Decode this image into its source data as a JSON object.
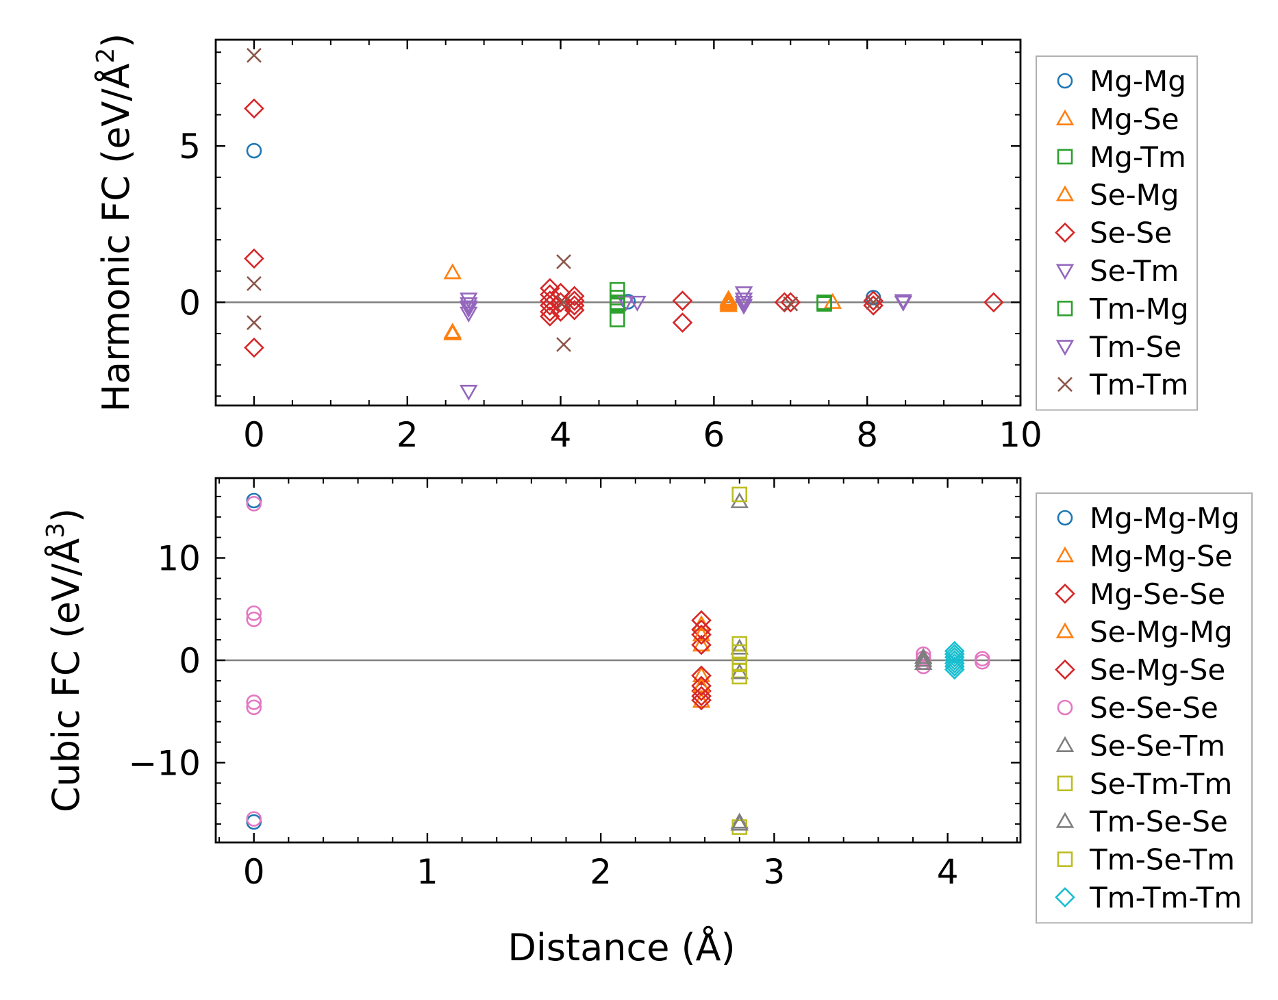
{
  "chart_data": [
    {
      "type": "scatter",
      "panel": "top",
      "ylabel": "Harmonic FC (eV/Å",
      "ylabel_sup": "2",
      "ylabel_end": ")",
      "xlim": [
        -0.5,
        10
      ],
      "ylim": [
        -3.3,
        8.4
      ],
      "xticks": [
        0,
        2,
        4,
        6,
        8,
        10
      ],
      "yticks": [
        0,
        5
      ],
      "zero_line": true,
      "legend_position": "right-outside",
      "series": [
        {
          "name": "Mg-Mg",
          "marker": "circle",
          "color": "#1f77b4",
          "x": [
            0,
            8.08,
            4.88
          ],
          "y": [
            4.85,
            0.15,
            0.02
          ]
        },
        {
          "name": "Mg-Se",
          "marker": "triangle-up",
          "color": "#ff7f0e",
          "x": [
            2.59,
            2.59,
            2.59,
            6.19,
            6.19,
            6.19,
            7.55
          ],
          "y": [
            0.95,
            -0.95,
            -1.0,
            0.1,
            -0.1,
            0.0,
            0.0
          ]
        },
        {
          "name": "Mg-Tm",
          "marker": "square",
          "color": "#2ca02c",
          "x": [
            4.74,
            4.74,
            4.74,
            4.74,
            7.44,
            7.44
          ],
          "y": [
            0.4,
            0.15,
            -0.05,
            -0.55,
            0.0,
            -0.05
          ]
        },
        {
          "name": "Se-Mg",
          "marker": "triangle-up",
          "color": "#ff7f0e",
          "x": [
            2.59,
            6.19,
            6.19
          ],
          "y": [
            -0.98,
            -0.05,
            0.05
          ]
        },
        {
          "name": "Se-Se",
          "marker": "diamond",
          "color": "#d62728",
          "x": [
            0,
            0,
            0,
            3.86,
            3.86,
            3.86,
            3.86,
            3.86,
            3.86,
            4.0,
            4.0,
            4.0,
            4.18,
            4.18,
            4.18,
            4.18,
            5.59,
            5.59,
            6.92,
            7.0,
            8.08,
            8.08,
            9.65
          ],
          "y": [
            6.2,
            1.4,
            -1.45,
            0.45,
            0.25,
            0.05,
            -0.1,
            -0.3,
            -0.45,
            0.3,
            0.0,
            -0.3,
            0.2,
            0.05,
            -0.1,
            -0.25,
            0.05,
            -0.65,
            0.0,
            0.0,
            0.05,
            -0.1,
            0.0
          ]
        },
        {
          "name": "Se-Tm",
          "marker": "triangle-down",
          "color": "#9467bd",
          "x": [
            2.8,
            2.8,
            2.8,
            2.8,
            4.85,
            5.0,
            6.39,
            6.39,
            6.39,
            8.47
          ],
          "y": [
            0.1,
            -0.05,
            -0.2,
            -0.35,
            0.0,
            0.0,
            0.3,
            0.1,
            -0.1,
            0.0
          ]
        },
        {
          "name": "Tm-Mg",
          "marker": "square",
          "color": "#2ca02c",
          "x": [
            4.74,
            4.74
          ],
          "y": [
            0.0,
            -0.1
          ]
        },
        {
          "name": "Tm-Se",
          "marker": "triangle-down",
          "color": "#9467bd",
          "x": [
            2.8,
            2.8,
            6.39,
            8.47
          ],
          "y": [
            -2.85,
            -0.15,
            0.0,
            0.05
          ]
        },
        {
          "name": "Tm-Tm",
          "marker": "x",
          "color": "#8c564b",
          "x": [
            0,
            0,
            0,
            4.04,
            4.04,
            4.04,
            7.0,
            8.08
          ],
          "y": [
            7.9,
            0.6,
            -0.65,
            1.3,
            0.0,
            -1.35,
            -0.05,
            0.0
          ]
        }
      ]
    },
    {
      "type": "scatter",
      "panel": "bottom",
      "ylabel": "Cubic FC (eV/Å",
      "ylabel_sup": "3",
      "ylabel_end": ")",
      "xlabel": "Distance (Å)",
      "xlim": [
        -0.22,
        4.42
      ],
      "ylim": [
        -17.8,
        17.8
      ],
      "xticks": [
        0,
        1,
        2,
        3,
        4
      ],
      "yticks": [
        -10,
        0,
        10
      ],
      "zero_line": true,
      "legend_position": "right-outside",
      "series": [
        {
          "name": "Mg-Mg-Mg",
          "marker": "circle",
          "color": "#1f77b4",
          "x": [
            0,
            0
          ],
          "y": [
            15.6,
            -15.8
          ]
        },
        {
          "name": "Mg-Mg-Se",
          "marker": "triangle-up",
          "color": "#ff7f0e",
          "x": [
            2.58,
            2.58,
            2.58,
            2.58
          ],
          "y": [
            3.5,
            1.5,
            -1.5,
            -4.0
          ]
        },
        {
          "name": "Mg-Se-Se",
          "marker": "diamond",
          "color": "#d62728",
          "x": [
            2.58,
            2.58,
            2.58,
            2.58,
            2.58,
            2.58
          ],
          "y": [
            3.9,
            3.0,
            1.5,
            -1.5,
            -3.0,
            -3.9
          ]
        },
        {
          "name": "Se-Mg-Mg",
          "marker": "triangle-up",
          "color": "#ff7f0e",
          "x": [
            2.58,
            2.58
          ],
          "y": [
            2.5,
            -2.5
          ]
        },
        {
          "name": "Se-Mg-Se",
          "marker": "diamond",
          "color": "#d62728",
          "x": [
            2.58,
            2.58,
            2.58
          ],
          "y": [
            2.5,
            -2.5,
            -3.5
          ]
        },
        {
          "name": "Se-Se-Se",
          "marker": "circle",
          "color": "#e377c2",
          "x": [
            0,
            0,
            0,
            0,
            0,
            0,
            3.86,
            3.86,
            3.86,
            3.86,
            4.2,
            4.2
          ],
          "y": [
            15.3,
            4.6,
            4.0,
            -4.1,
            -4.6,
            -15.5,
            0.6,
            0.2,
            -0.2,
            -0.6,
            0.15,
            -0.15
          ]
        },
        {
          "name": "Se-Se-Tm",
          "marker": "triangle-up",
          "color": "#7f7f7f",
          "x": [
            2.8,
            2.8,
            3.86,
            3.86
          ],
          "y": [
            15.5,
            -15.8,
            0.3,
            -0.3
          ]
        },
        {
          "name": "Se-Tm-Tm",
          "marker": "square",
          "color": "#bcbd22",
          "x": [
            2.8,
            2.8,
            2.8,
            2.8,
            2.8
          ],
          "y": [
            16.2,
            1.6,
            0.3,
            -1.0,
            -16.3
          ]
        },
        {
          "name": "Tm-Se-Se",
          "marker": "triangle-up",
          "color": "#7f7f7f",
          "x": [
            2.8,
            2.8,
            2.8,
            3.86
          ],
          "y": [
            1.2,
            -1.2,
            -16.0,
            0.0
          ]
        },
        {
          "name": "Tm-Se-Tm",
          "marker": "square",
          "color": "#bcbd22",
          "x": [
            2.8,
            2.8,
            2.8
          ],
          "y": [
            0.8,
            -0.4,
            -1.6
          ]
        },
        {
          "name": "Tm-Tm-Tm",
          "marker": "diamond",
          "color": "#17becf",
          "x": [
            4.04,
            4.04,
            4.04,
            4.04,
            4.04,
            4.04,
            4.04
          ],
          "y": [
            0.9,
            0.6,
            0.3,
            0.0,
            -0.3,
            -0.6,
            -0.9
          ]
        }
      ]
    }
  ]
}
